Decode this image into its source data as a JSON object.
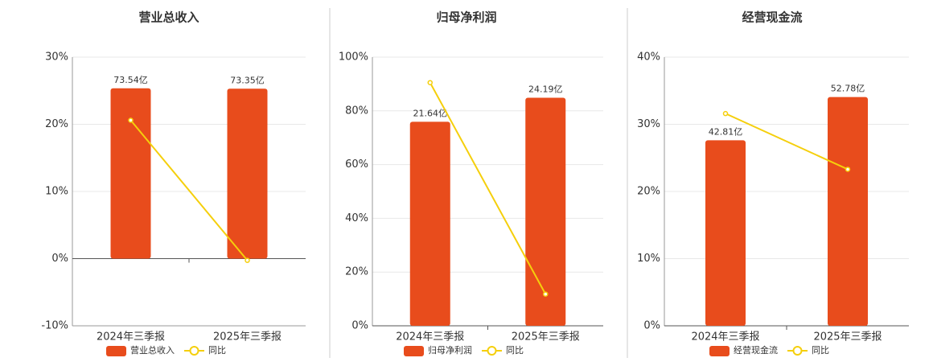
{
  "chart_data": [
    {
      "type": "bar",
      "title": "营业总收入",
      "categories": [
        "2024年三季报",
        "2025年三季报"
      ],
      "series": [
        {
          "name": "营业总收入",
          "type": "bar",
          "color": "#e84c1c",
          "axis": "y2",
          "values": [
            73.54,
            73.35
          ],
          "value_labels": [
            "73.54亿",
            "73.35亿"
          ]
        },
        {
          "name": "同比",
          "type": "line",
          "color": "#f5cf0c",
          "values": [
            20.6,
            -0.26
          ]
        }
      ],
      "ylim": [
        -10,
        30
      ],
      "yticks": [
        {
          "value": -10,
          "label": "-10%"
        },
        {
          "value": 0,
          "label": "0%"
        },
        {
          "value": 10,
          "label": "10%"
        },
        {
          "value": 20,
          "label": "20%"
        },
        {
          "value": 30,
          "label": "30%"
        }
      ],
      "y2lim": [
        -29,
        87
      ],
      "grid": true,
      "legend": "bottom"
    },
    {
      "type": "bar",
      "title": "归母净利润",
      "categories": [
        "2024年三季报",
        "2025年三季报"
      ],
      "series": [
        {
          "name": "归母净利润",
          "type": "bar",
          "color": "#e84c1c",
          "axis": "y2",
          "values": [
            21.64,
            24.19
          ],
          "value_labels": [
            "21.64亿",
            "24.19亿"
          ]
        },
        {
          "name": "同比",
          "type": "line",
          "color": "#f5cf0c",
          "values": [
            90.5,
            11.8
          ]
        }
      ],
      "ylim": [
        0,
        100
      ],
      "yticks": [
        {
          "value": 0,
          "label": "0%"
        },
        {
          "value": 20,
          "label": "20%"
        },
        {
          "value": 40,
          "label": "40%"
        },
        {
          "value": 60,
          "label": "60%"
        },
        {
          "value": 80,
          "label": "80%"
        },
        {
          "value": 100,
          "label": "100%"
        }
      ],
      "y2lim": [
        0,
        28.5
      ],
      "grid": true,
      "legend": "bottom"
    },
    {
      "type": "bar",
      "title": "经营现金流",
      "categories": [
        "2024年三季报",
        "2025年三季报"
      ],
      "series": [
        {
          "name": "经营现金流",
          "type": "bar",
          "color": "#e84c1c",
          "axis": "y2",
          "values": [
            42.81,
            52.78
          ],
          "value_labels": [
            "42.81亿",
            "52.78亿"
          ]
        },
        {
          "name": "同比",
          "type": "line",
          "color": "#f5cf0c",
          "values": [
            31.6,
            23.3
          ]
        }
      ],
      "ylim": [
        0,
        40
      ],
      "yticks": [
        {
          "value": 0,
          "label": "0%"
        },
        {
          "value": 10,
          "label": "10%"
        },
        {
          "value": 20,
          "label": "20%"
        },
        {
          "value": 30,
          "label": "30%"
        },
        {
          "value": 40,
          "label": "40%"
        }
      ],
      "y2lim": [
        0,
        62
      ],
      "grid": true,
      "legend": "bottom"
    }
  ]
}
